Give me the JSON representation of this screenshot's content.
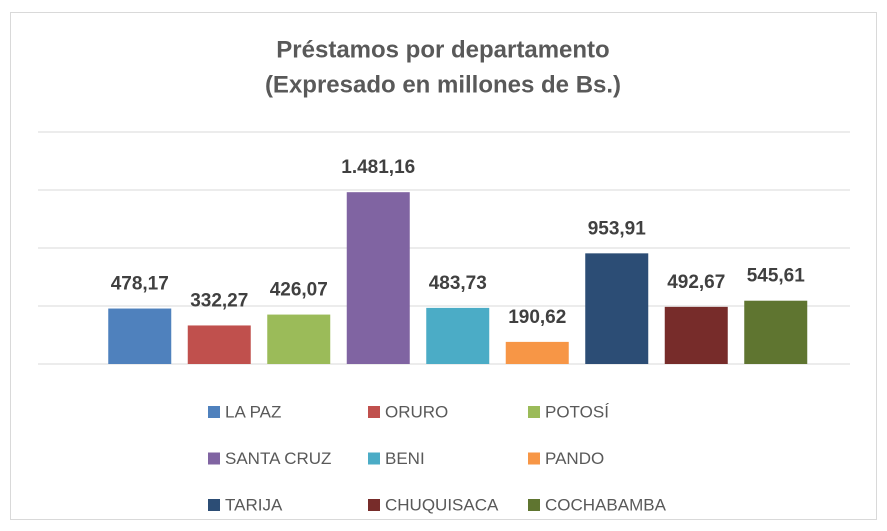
{
  "chart_data": {
    "type": "bar",
    "title": [
      "Préstamos por departamento",
      "(Expresado en millones de Bs.)"
    ],
    "categories": [
      "LA PAZ",
      "ORURO",
      "POTOSÍ",
      "SANTA CRUZ",
      "BENI",
      "PANDO",
      "TARIJA",
      "CHUQUISACA",
      "COCHABAMBA"
    ],
    "values": [
      478.17,
      332.27,
      426.07,
      1481.16,
      483.73,
      190.62,
      953.91,
      492.67,
      545.61
    ],
    "value_labels": [
      "478,17",
      "332,27",
      "426,07",
      "1.481,16",
      "483,73",
      "190,62",
      "953,91",
      "492,67",
      "545,61"
    ],
    "colors": [
      "#4f81bd",
      "#c0504d",
      "#9bbb59",
      "#8064a2",
      "#4bacc6",
      "#f79646",
      "#2c4d75",
      "#772c2a",
      "#5f7530"
    ],
    "ylim": [
      0,
      2000
    ],
    "yticks": [
      0,
      500,
      1000,
      1500,
      2000
    ],
    "grid": true,
    "legend": "bottom"
  }
}
